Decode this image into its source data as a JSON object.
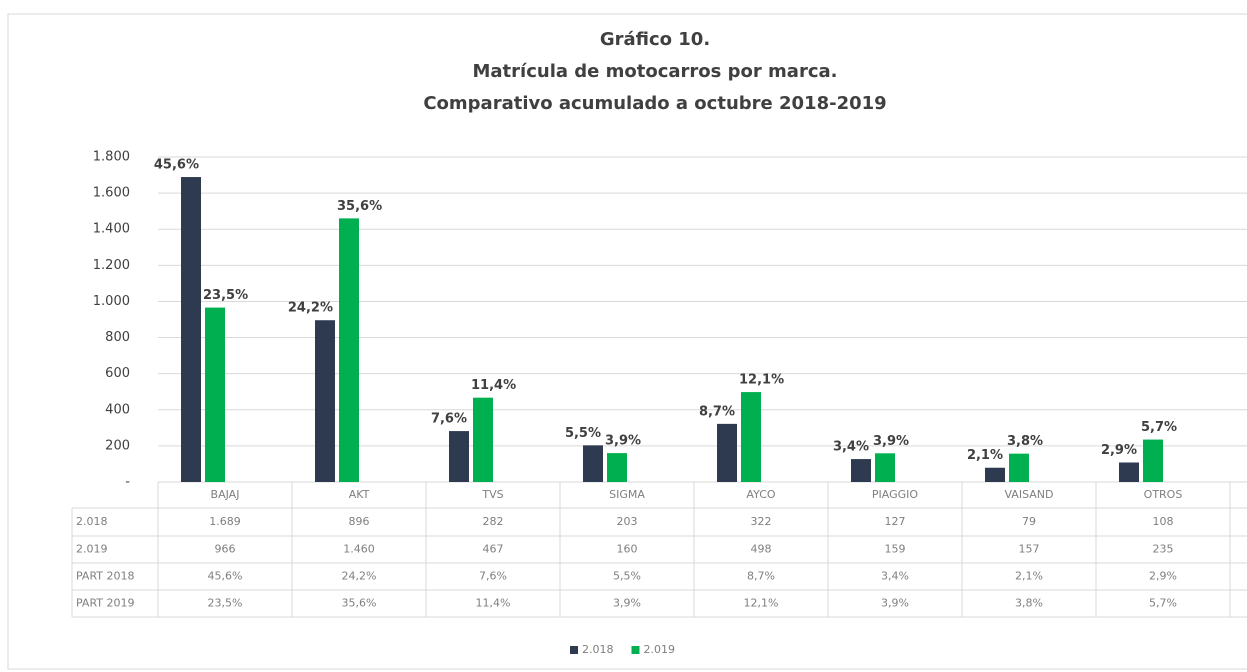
{
  "chart_data": {
    "type": "bar",
    "title": "Gráfico 10.",
    "subtitle": [
      "Matrícula de motocarros por marca.",
      "Comparativo acumulado a octubre 2018-2019"
    ],
    "categories": [
      "BAJAJ",
      "AKT",
      "TVS",
      "SIGMA",
      "AYCO",
      "PIAGGIO",
      "VAISAND",
      "OTROS"
    ],
    "series": [
      {
        "name": "2.018",
        "color": "#2e3a4f",
        "values": [
          1689,
          896,
          282,
          203,
          322,
          127,
          79,
          108
        ],
        "value_labels": [
          "1.689",
          "896",
          "282",
          "203",
          "322",
          "127",
          "79",
          "108"
        ]
      },
      {
        "name": "2.019",
        "color": "#00b050",
        "values": [
          966,
          1460,
          467,
          160,
          498,
          159,
          157,
          235
        ],
        "value_labels": [
          "966",
          "1.460",
          "467",
          "160",
          "498",
          "159",
          "157",
          "235"
        ]
      }
    ],
    "shares": [
      {
        "name": "PART 2018",
        "values": [
          45.6,
          24.2,
          7.6,
          5.5,
          8.7,
          3.4,
          2.1,
          2.9
        ],
        "value_labels": [
          "45,6%",
          "24,2%",
          "7,6%",
          "5,5%",
          "8,7%",
          "3,4%",
          "2,1%",
          "2,9%"
        ]
      },
      {
        "name": "PART 2019",
        "values": [
          23.5,
          35.6,
          11.4,
          3.9,
          12.1,
          3.9,
          3.8,
          5.7
        ],
        "value_labels": [
          "23,5%",
          "35,6%",
          "11,4%",
          "3,9%",
          "12,1%",
          "3,9%",
          "3,8%",
          "5,7%"
        ]
      }
    ],
    "ylim": [
      0,
      1800
    ],
    "yticks": [
      {
        "value": 0,
        "label": "-"
      },
      200,
      400,
      600,
      800,
      {
        "value": 1000,
        "label": "1.000"
      },
      {
        "value": 1200,
        "label": "1.200"
      },
      {
        "value": 1400,
        "label": "1.400"
      },
      {
        "value": 1600,
        "label": "1.600"
      },
      {
        "value": 1800,
        "label": "1.800"
      }
    ],
    "grid": true,
    "legend": "bottom"
  }
}
